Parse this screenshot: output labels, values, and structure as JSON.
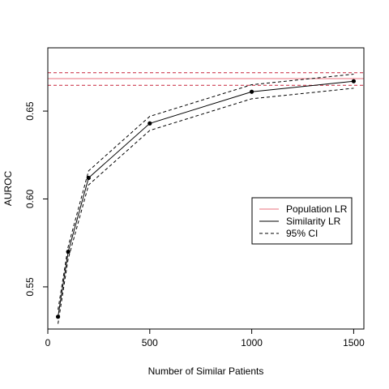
{
  "chart_data": {
    "type": "line",
    "title": "",
    "xlabel": "Number of Similar Patients",
    "ylabel": "AUROC",
    "xlim": [
      0,
      1550
    ],
    "ylim": [
      0.526,
      0.686
    ],
    "x_ticks": [
      0,
      500,
      1000,
      1500
    ],
    "y_ticks": [
      0.55,
      0.6,
      0.65
    ],
    "x_tick_labels": [
      "0",
      "500",
      "1000",
      "1500"
    ],
    "y_tick_labels": [
      "0.55",
      "0.60",
      "0.65"
    ],
    "grid": false,
    "legend_position": "right",
    "series": [
      {
        "name": "Population LR",
        "kind": "hline",
        "style": "solid",
        "color": "#e8707e",
        "y": 0.6685
      },
      {
        "name": "",
        "kind": "hline",
        "style": "dashed",
        "color": "#c7263c",
        "y": 0.6718
      },
      {
        "name": "",
        "kind": "hline",
        "style": "dashed",
        "color": "#c7263c",
        "y": 0.6647
      },
      {
        "name": "Similarity LR",
        "kind": "line",
        "style": "solid",
        "color": "#000000",
        "markers": true,
        "x": [
          50,
          100,
          200,
          500,
          1000,
          1500
        ],
        "y": [
          0.533,
          0.57,
          0.612,
          0.643,
          0.661,
          0.667
        ]
      },
      {
        "name": "95% CI",
        "kind": "line",
        "style": "dashed",
        "color": "#000000",
        "markers": false,
        "x": [
          50,
          100,
          200,
          500,
          1000,
          1500
        ],
        "y": [
          0.537,
          0.573,
          0.616,
          0.647,
          0.665,
          0.671
        ]
      },
      {
        "name": "",
        "kind": "line",
        "style": "dashed",
        "color": "#000000",
        "markers": false,
        "x": [
          50,
          100,
          200,
          500,
          1000,
          1500
        ],
        "y": [
          0.529,
          0.566,
          0.608,
          0.639,
          0.657,
          0.663
        ]
      }
    ],
    "legend": [
      {
        "label": "Population LR",
        "color": "#e8707e",
        "style": "solid"
      },
      {
        "label": "Similarity LR",
        "color": "#000000",
        "style": "solid"
      },
      {
        "label": "95% CI",
        "color": "#000000",
        "style": "dashed"
      }
    ]
  }
}
